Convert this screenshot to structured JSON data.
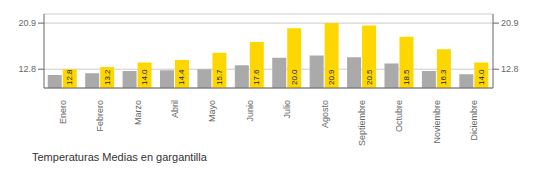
{
  "chart_data": {
    "type": "bar",
    "title": "Temperaturas Medias en gargantilla",
    "categories": [
      "Enero",
      "Febrero",
      "Marzo",
      "Abril",
      "Mayo",
      "Junio",
      "Julio",
      "Agosto",
      "Septiembre",
      "Octubre",
      "Noviembre",
      "Diciembre"
    ],
    "series": [
      {
        "color": "#AAAAAA",
        "values": [
          11.8,
          12.1,
          12.5,
          12.6,
          12.8,
          13.5,
          14.8,
          15.2,
          14.9,
          13.8,
          12.5,
          11.9
        ]
      },
      {
        "color": "#FFD700",
        "values": [
          12.8,
          13.2,
          14.0,
          14.4,
          15.7,
          17.6,
          20.0,
          20.9,
          20.5,
          18.5,
          16.3,
          14.0
        ],
        "value_labels": [
          "12.8",
          "13.2",
          "14.0",
          "14.4",
          "15.7",
          "17.6",
          "20.0",
          "20.9",
          "20.5",
          "18.5",
          "16.3",
          "14.0"
        ],
        "data_labels": true
      }
    ],
    "ylim": [
      9.5,
      22.5
    ],
    "yticks": [
      12.8,
      20.9
    ],
    "y2lim": [
      9.5,
      22.5
    ],
    "y2ticks": [
      12.8,
      20.9
    ],
    "grid": true
  }
}
